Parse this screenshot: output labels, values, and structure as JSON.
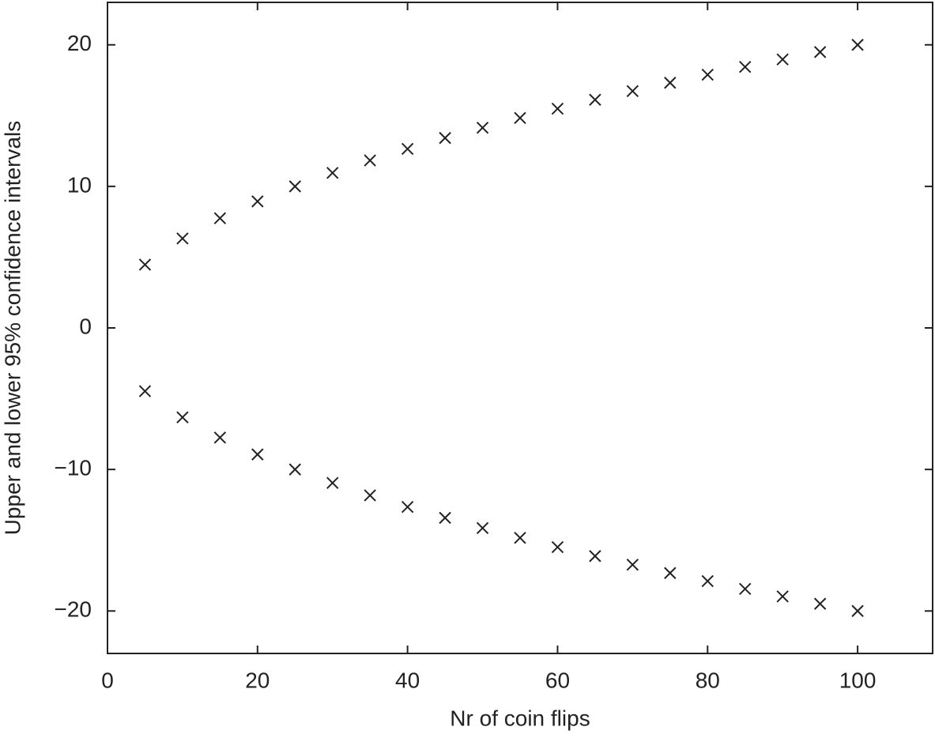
{
  "chart_data": {
    "type": "scatter",
    "xlabel": "Nr of coin flips",
    "ylabel": "Upper and lower 95% confidence intervals",
    "x": [
      5,
      10,
      15,
      20,
      25,
      30,
      35,
      40,
      45,
      50,
      55,
      60,
      65,
      70,
      75,
      80,
      85,
      90,
      95,
      100
    ],
    "series": [
      {
        "color": "#222222",
        "marker": "x",
        "values": [
          4.47,
          6.32,
          7.75,
          8.94,
          10,
          10.95,
          11.83,
          12.65,
          13.42,
          14.14,
          14.83,
          15.49,
          16.12,
          16.73,
          17.32,
          17.89,
          18.44,
          18.97,
          19.49,
          20
        ]
      },
      {
        "color": "#222222",
        "marker": "x",
        "values": [
          -4.47,
          -6.32,
          -7.75,
          -8.94,
          -10,
          -10.95,
          -11.83,
          -12.65,
          -13.42,
          -14.14,
          -14.83,
          -15.49,
          -16.12,
          -16.73,
          -17.32,
          -17.89,
          -18.44,
          -18.97,
          -19.49,
          -20
        ]
      }
    ],
    "xlim": [
      0,
      110
    ],
    "ylim": [
      -23,
      23
    ],
    "xticks": [
      0,
      20,
      40,
      60,
      80,
      100
    ],
    "yticks": [
      {
        "value": -20,
        "label": "−20"
      },
      {
        "value": -10,
        "label": "−10"
      },
      0,
      10,
      20
    ],
    "grid": false
  }
}
